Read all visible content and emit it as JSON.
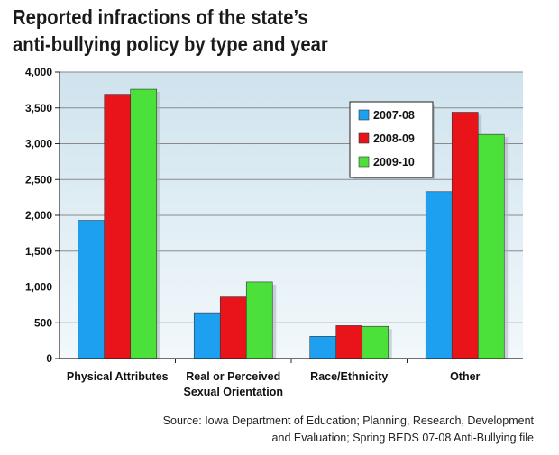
{
  "title_lines": [
    "Reported infractions of the state’s",
    "anti-bullying policy by type and year"
  ],
  "source_lines": [
    "Source: Iowa Department of Education; Planning, Research, Development",
    "and Evaluation; Spring BEDS 07-08 Anti-Bullying file"
  ],
  "chart_data": {
    "type": "bar",
    "title": "Reported infractions of the state’s anti-bullying policy by type and year",
    "xlabel": "",
    "ylabel": "",
    "ylim": [
      0,
      4000
    ],
    "yticks": [
      0,
      500,
      1000,
      1500,
      2000,
      2500,
      3000,
      3500,
      4000
    ],
    "ytick_labels": [
      "0",
      "500",
      "1,000",
      "1,500",
      "2,000",
      "2,500",
      "3,000",
      "3,500",
      "4,000"
    ],
    "categories": [
      [
        "Physical Attributes"
      ],
      [
        "Real or Perceived",
        "Sexual Orientation"
      ],
      [
        "Race/Ethnicity"
      ],
      [
        "Other"
      ]
    ],
    "series": [
      {
        "name": "2007-08",
        "color": "#1ea0f0",
        "values": [
          1930,
          640,
          310,
          2330
        ]
      },
      {
        "name": "2008-09",
        "color": "#e8141a",
        "values": [
          3690,
          860,
          460,
          3440
        ]
      },
      {
        "name": "2009-10",
        "color": "#4ce03a",
        "values": [
          3760,
          1070,
          450,
          3130
        ]
      }
    ],
    "grid": true,
    "legend_position": "top-right"
  }
}
